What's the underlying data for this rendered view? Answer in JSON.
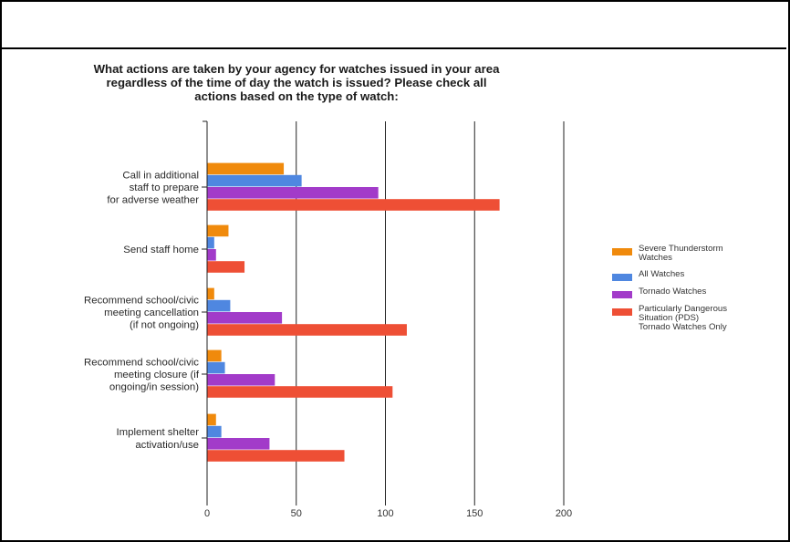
{
  "chart_data": {
    "type": "bar",
    "orientation": "horizontal",
    "title": "What actions are taken by your agency for watches issued in your area\nregardless of the time of day the watch is issued?   Please check all\nactions based on the type of watch:",
    "categories": [
      "Call in additional\nstaff to prepare\nfor adverse weather",
      "Send staff home",
      "Recommend school/civic\nmeeting cancellation\n(if not ongoing)",
      "Recommend school/civic\nmeeting closure (if\nongoing/in session)",
      "Implement shelter\nactivation/use"
    ],
    "series": [
      {
        "name": "Severe Thunderstorm Watches",
        "legend_label": "Severe Thunderstorm\nWatches",
        "color": "#F08A0C",
        "values": [
          43,
          12,
          4,
          8,
          5
        ]
      },
      {
        "name": "All Watches",
        "legend_label": "All Watches",
        "color": "#4F87E0",
        "values": [
          53,
          4,
          13,
          10,
          8
        ]
      },
      {
        "name": "Tornado Watches",
        "legend_label": "Tornado Watches",
        "color": "#A23BC9",
        "values": [
          96,
          5,
          42,
          38,
          35
        ]
      },
      {
        "name": "Particularly Dangerous Situation (PDS) Tornado Watches Only",
        "legend_label": "Particularly Dangerous\nSituation (PDS)\nTornado Watches Only",
        "color": "#EE4F35",
        "values": [
          164,
          21,
          112,
          104,
          77
        ]
      }
    ],
    "xlim": [
      0,
      200
    ],
    "xticks": [
      "0",
      "50",
      "100",
      "150",
      "200"
    ],
    "grid": "vertical",
    "legend_position": "right"
  }
}
